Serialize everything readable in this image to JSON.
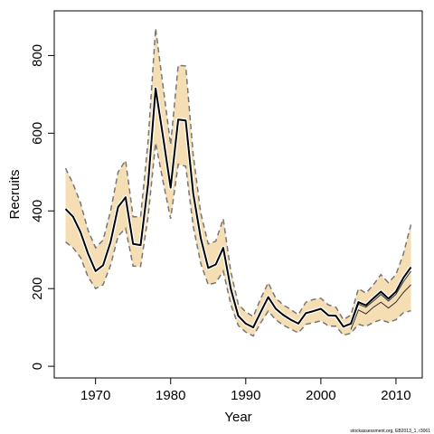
{
  "chart_data": {
    "type": "line",
    "title": "",
    "xlabel": "Year",
    "ylabel": "Recruits",
    "xlim": [
      1964.5,
      2013.5
    ],
    "ylim": [
      -30,
      915
    ],
    "x_ticks": [
      1970,
      1980,
      1990,
      2000,
      2010
    ],
    "y_ticks": [
      0,
      200,
      400,
      600,
      800
    ],
    "grid": false,
    "legend": "none",
    "footnote": "stockassessment.org, EB2013_1, r3061",
    "colors": {
      "band_fill": "#f5deb3",
      "estimate_line": "#000000",
      "bound_line": "#777777",
      "bright_line": "#ffffff"
    },
    "series": [
      {
        "role": "estimate",
        "x": [
          1966,
          1967,
          1968,
          1969,
          1970,
          1971,
          1972,
          1973,
          1974,
          1975,
          1976,
          1977,
          1978,
          1979,
          1980,
          1981,
          1982,
          1983,
          1984,
          1985,
          1986,
          1987,
          1988,
          1989,
          1990,
          1991,
          1992,
          1993,
          1994,
          1995,
          1996,
          1997,
          1998,
          1999,
          2000,
          2001,
          2002,
          2003,
          2004,
          2005,
          2006,
          2007,
          2008,
          2009,
          2010,
          2011,
          2012
        ],
        "values": [
          405,
          385,
          345,
          290,
          245,
          260,
          320,
          410,
          435,
          315,
          312,
          470,
          715,
          590,
          460,
          635,
          633,
          445,
          330,
          253,
          262,
          305,
          200,
          130,
          110,
          100,
          140,
          178,
          148,
          132,
          120,
          110,
          137,
          142,
          148,
          131,
          130,
          102,
          110,
          165,
          157,
          175,
          192,
          174,
          192,
          228,
          255
        ]
      },
      {
        "role": "upper-bound",
        "x": [
          1966,
          1967,
          1968,
          1969,
          1970,
          1971,
          1972,
          1973,
          1974,
          1975,
          1976,
          1977,
          1978,
          1979,
          1980,
          1981,
          1982,
          1983,
          1984,
          1985,
          1986,
          1987,
          1988,
          1989,
          1990,
          1991,
          1992,
          1993,
          1994,
          1995,
          1996,
          1997,
          1998,
          1999,
          2000,
          2001,
          2002,
          2003,
          2004,
          2005,
          2006,
          2007,
          2008,
          2009,
          2010,
          2011,
          2012
        ],
        "values": [
          510,
          470,
          420,
          350,
          305,
          325,
          400,
          500,
          530,
          385,
          385,
          580,
          870,
          720,
          570,
          775,
          773,
          545,
          395,
          315,
          322,
          380,
          245,
          160,
          140,
          128,
          175,
          215,
          175,
          158,
          146,
          133,
          165,
          172,
          175,
          158,
          152,
          120,
          132,
          200,
          188,
          210,
          236,
          215,
          236,
          290,
          365
        ]
      },
      {
        "role": "lower-bound",
        "x": [
          1966,
          1967,
          1968,
          1969,
          1970,
          1971,
          1972,
          1973,
          1974,
          1975,
          1976,
          1977,
          1978,
          1979,
          1980,
          1981,
          1982,
          1983,
          1984,
          1985,
          1986,
          1987,
          1988,
          1989,
          1990,
          1991,
          1992,
          1993,
          1994,
          1995,
          1996,
          1997,
          1998,
          1999,
          2000,
          2001,
          2002,
          2003,
          2004,
          2005,
          2006,
          2007,
          2008,
          2009,
          2010,
          2011,
          2012
        ],
        "values": [
          320,
          305,
          280,
          230,
          200,
          210,
          260,
          335,
          355,
          258,
          257,
          385,
          575,
          475,
          380,
          520,
          515,
          360,
          265,
          210,
          215,
          245,
          160,
          105,
          88,
          78,
          112,
          142,
          120,
          106,
          96,
          86,
          108,
          112,
          117,
          104,
          103,
          80,
          85,
          108,
          103,
          113,
          120,
          113,
          120,
          138,
          143
        ]
      },
      {
        "role": "inner-upper",
        "x": [
          2004,
          2005,
          2006,
          2007,
          2008,
          2009,
          2010,
          2011,
          2012
        ],
        "values": [
          108,
          160,
          152,
          168,
          185,
          168,
          185,
          218,
          245
        ]
      },
      {
        "role": "inner-lower",
        "x": [
          2004,
          2005,
          2006,
          2007,
          2008,
          2009,
          2010,
          2011,
          2012
        ],
        "values": [
          95,
          145,
          135,
          152,
          165,
          150,
          165,
          190,
          210
        ]
      }
    ]
  }
}
